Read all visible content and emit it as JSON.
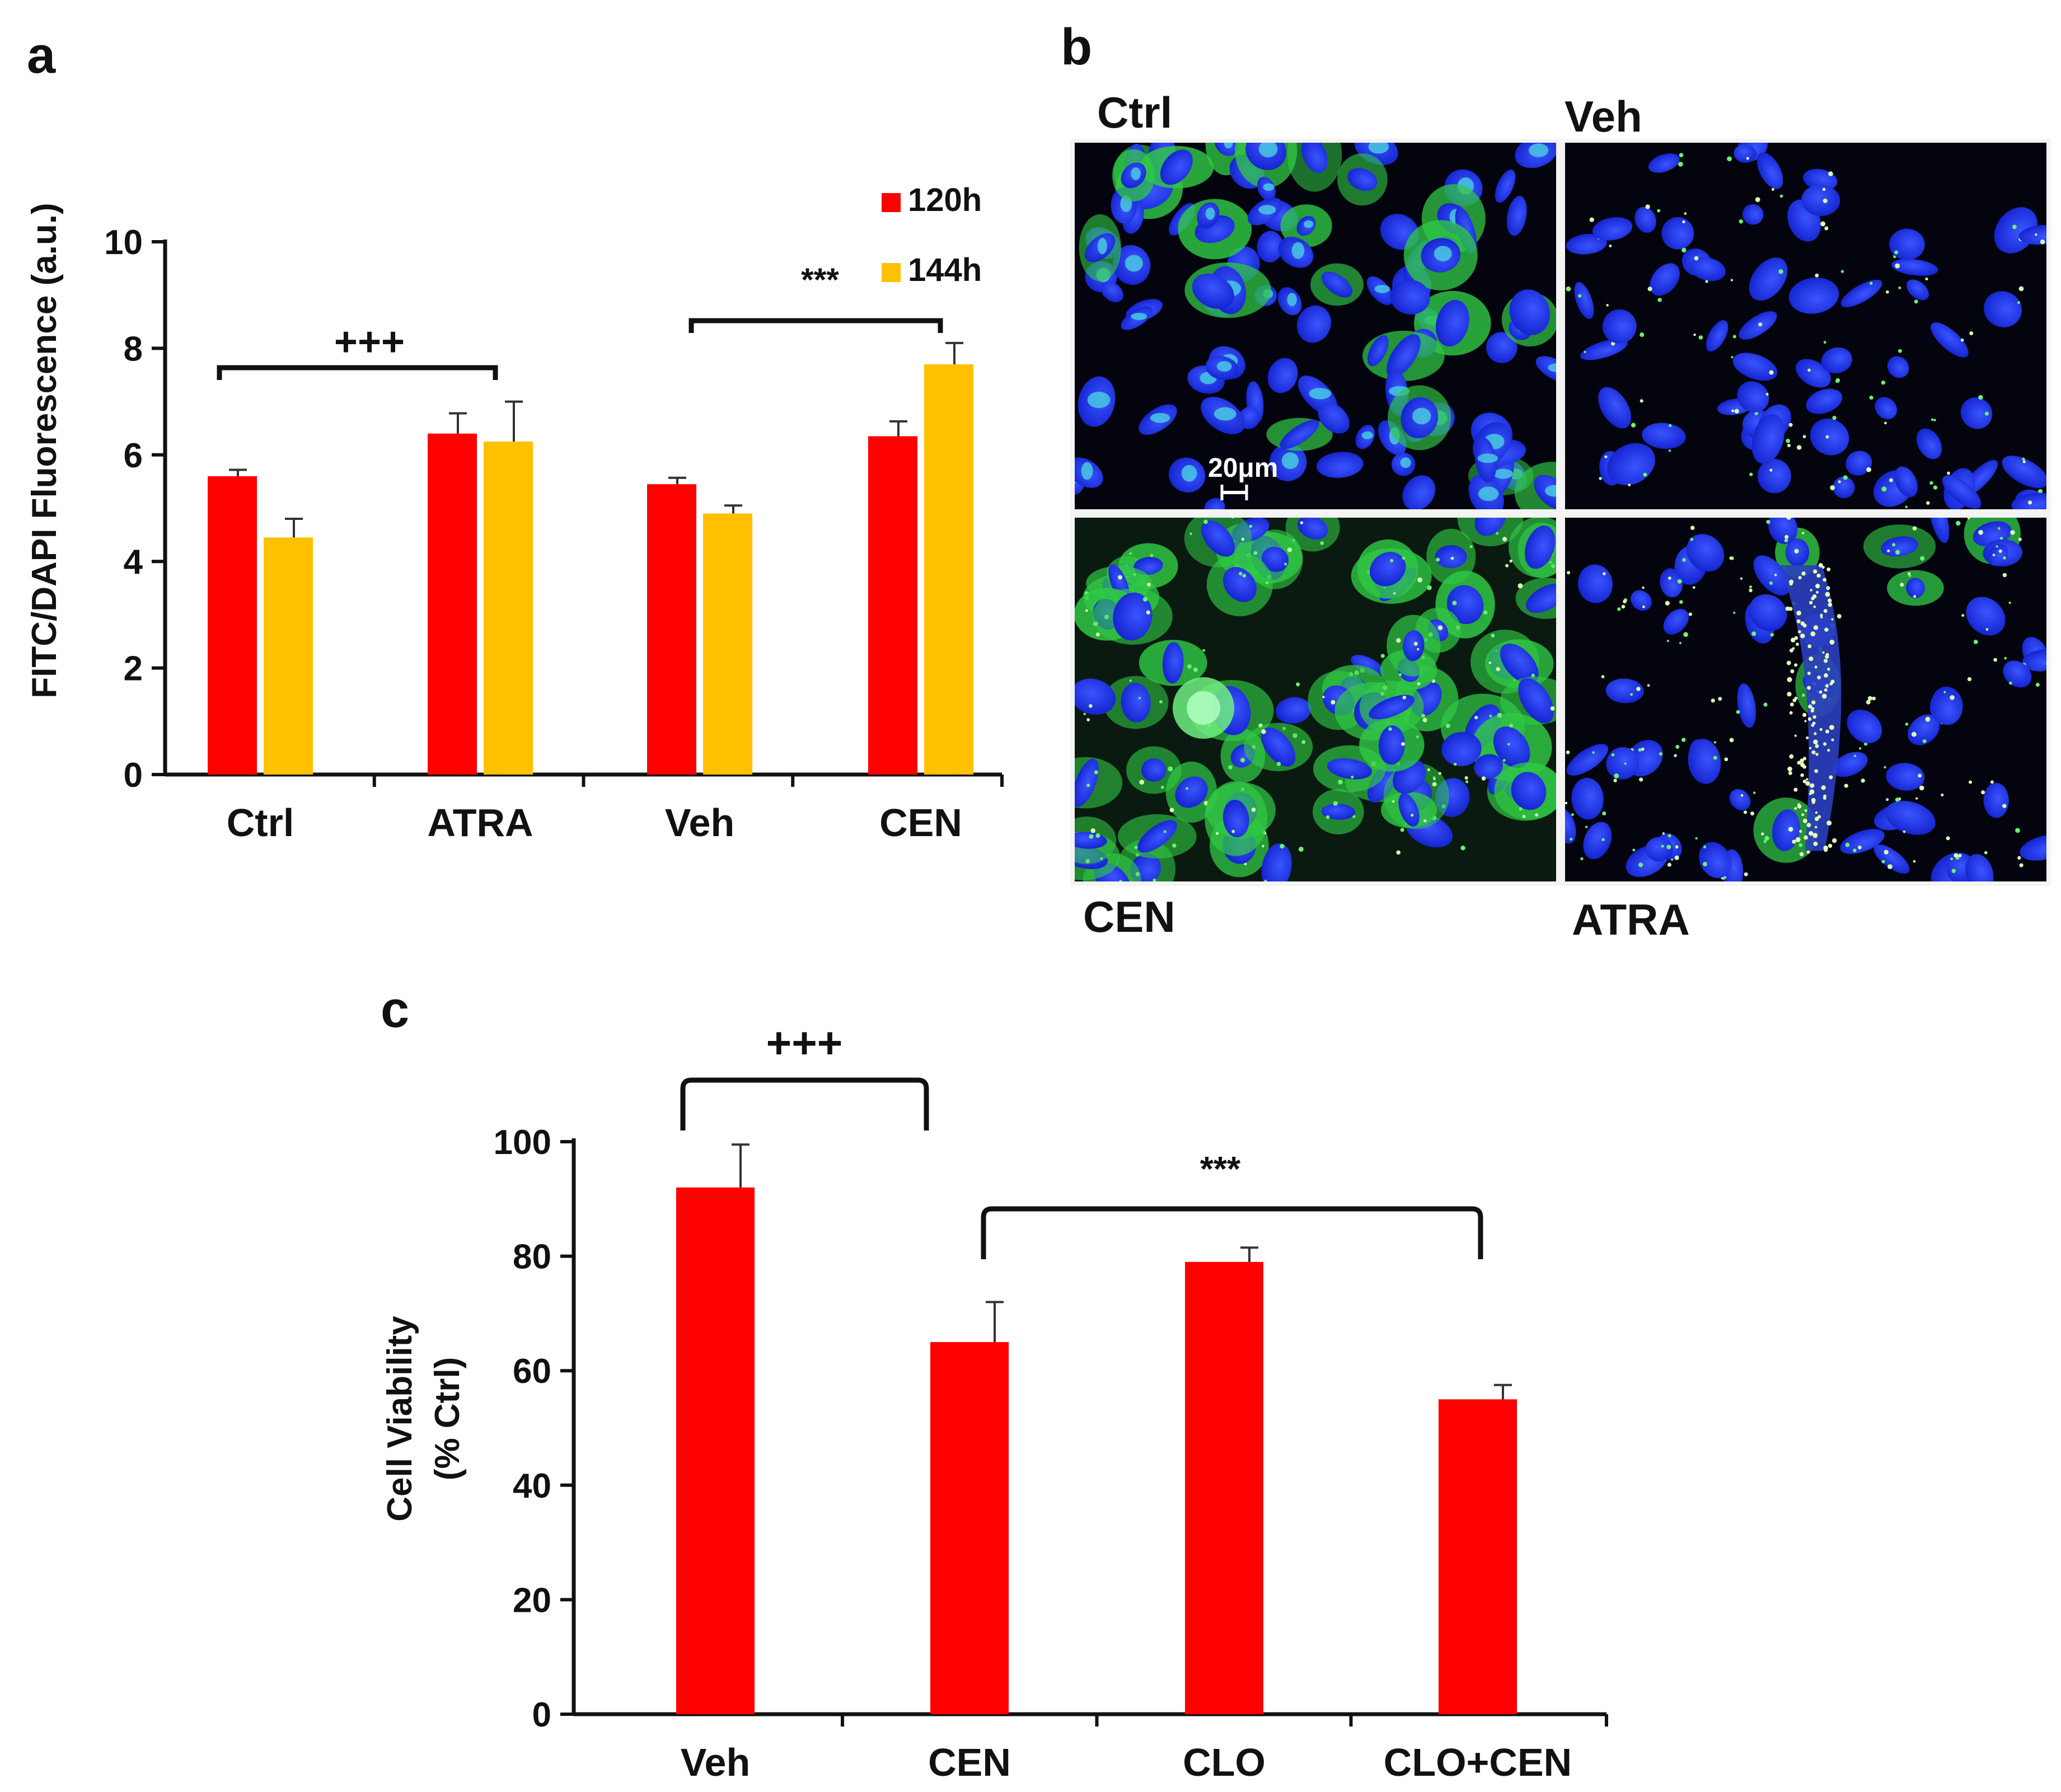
{
  "panels": {
    "a": "a",
    "b": "b",
    "c": "c"
  },
  "colors": {
    "red": "#ff0000",
    "yellow": "#ffc000",
    "nucleus_blue": "#1f35e8",
    "green_signal": "#39e04a",
    "background_black": "#04040f"
  },
  "chart_data": [
    {
      "panel": "a",
      "type": "bar",
      "ylabel": "FITC/DAPI Fluorescence (a.u.)",
      "ylim": [
        0,
        10
      ],
      "yticks": [
        "0",
        "2",
        "4",
        "6",
        "8",
        "10"
      ],
      "categories": [
        "Ctrl",
        "ATRA",
        "Veh",
        "CEN"
      ],
      "series": [
        {
          "name": "120h",
          "color": "#ff0000",
          "values": [
            5.6,
            6.4,
            5.45,
            6.35
          ],
          "errors": [
            0.12,
            0.38,
            0.12,
            0.28
          ]
        },
        {
          "name": "144h",
          "color": "#ffc000",
          "values": [
            4.45,
            6.25,
            4.9,
            7.7
          ],
          "errors": [
            0.35,
            0.75,
            0.15,
            0.4
          ]
        }
      ],
      "legend": "top-right",
      "annotations": [
        {
          "text": "+++",
          "from": "Ctrl",
          "to": "ATRA"
        },
        {
          "text": "***",
          "from": "Veh",
          "to": "CEN"
        }
      ]
    },
    {
      "panel": "c",
      "type": "bar",
      "ylabel_line1": "Cell Viability",
      "ylabel_line2": "(% Ctrl)",
      "ylim": [
        0,
        100
      ],
      "yticks": [
        "0",
        "20",
        "40",
        "60",
        "80",
        "100"
      ],
      "categories": [
        "Veh",
        "CEN",
        "CLO",
        "CLO+CEN"
      ],
      "values": [
        92,
        65,
        79,
        55
      ],
      "errors": [
        7.5,
        7,
        2.5,
        2.5
      ],
      "color": "#ff0000",
      "annotations": [
        {
          "text": "+++",
          "from": "Veh",
          "to": "CEN"
        },
        {
          "text": "***",
          "from": "CEN",
          "to": "CLO+CEN"
        }
      ]
    }
  ],
  "micrographs": {
    "ctrl_label": "Ctrl",
    "veh_label": "Veh",
    "cen_label": "CEN",
    "atra_label": "ATRA",
    "scale_bar_label": "20μm"
  }
}
